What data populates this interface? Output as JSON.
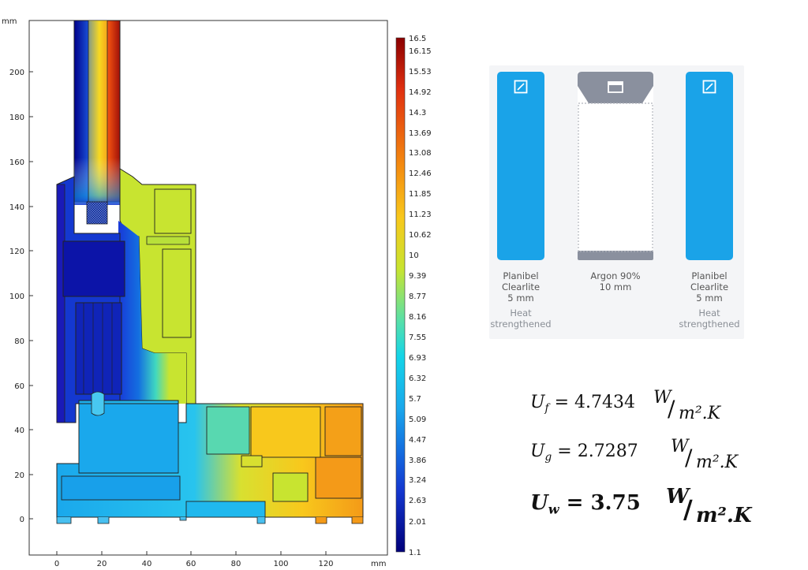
{
  "plot": {
    "unit_y": "mm",
    "unit_x": "mm",
    "y_ticks": [
      "200",
      "180",
      "160",
      "140",
      "120",
      "100",
      "80",
      "60",
      "40",
      "20",
      "0"
    ],
    "x_ticks": [
      "0",
      "20",
      "40",
      "60",
      "80",
      "100",
      "120"
    ],
    "colorbar_labels": [
      "16.5",
      "16.15",
      "15.53",
      "14.92",
      "14.3",
      "13.69",
      "13.08",
      "12.46",
      "11.85",
      "11.23",
      "10.62",
      "10",
      "9.39",
      "8.77",
      "8.16",
      "7.55",
      "6.93",
      "6.32",
      "5.7",
      "5.09",
      "4.47",
      "3.86",
      "3.24",
      "2.63",
      "2.01",
      "1.1"
    ]
  },
  "glazing": {
    "pane1": {
      "name": "Planibel",
      "name2": "Clearlite",
      "thickness": "5 mm",
      "note": "Heat",
      "note2": "strengthened"
    },
    "gap": {
      "name": "Argon 90%",
      "thickness": "10 mm"
    },
    "pane2": {
      "name": "Planibel",
      "name2": "Clearlite",
      "thickness": "5 mm",
      "note": "Heat",
      "note2": "strengthened"
    },
    "colors": {
      "pane": "#1aa3e8",
      "spacer": "#8a909e"
    }
  },
  "equations": {
    "uf": {
      "symbol": "U",
      "sub": "f",
      "eq": "= 4.7434",
      "num": "W",
      "den": "m².K"
    },
    "ug": {
      "symbol": "U",
      "sub": "g",
      "eq": "= 2.7287",
      "num": "W",
      "den": "m².K"
    },
    "uw": {
      "symbol": "U",
      "sub": "w",
      "eq": "= 3.75",
      "num": "W",
      "den": "m².K"
    }
  }
}
